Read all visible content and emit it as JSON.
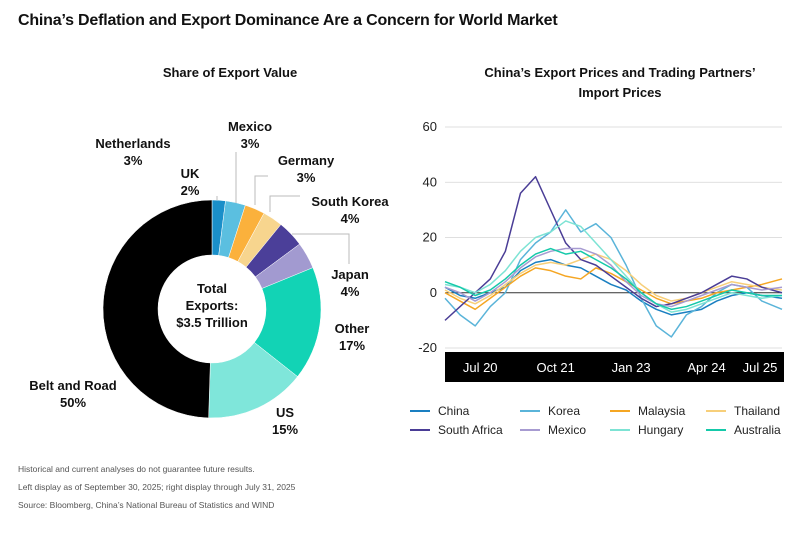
{
  "title": "China’s Deflation and Export Dominance Are a Concern for World Market",
  "footnotes": [
    "Historical and current analyses do not guarantee future results.",
    "Left display as of September 30, 2025; right display through July 31, 2025",
    "Source: Bloomberg, China’s National Bureau of Statistics and WIND"
  ],
  "chart_data": [
    {
      "type": "pie",
      "title": "Share of Export Value",
      "center_label": [
        "Total",
        "Exports:",
        "$3.5 Trillion"
      ],
      "slices": [
        {
          "label": "Netherlands",
          "value": 3,
          "value_label": "3%",
          "color": "#1a8fc9"
        },
        {
          "label": "Mexico",
          "value": 3,
          "value_label": "3%",
          "color": "#5bbfe0"
        },
        {
          "label": "Germany",
          "value": 3,
          "value_label": "3%",
          "color": "#fbb13c"
        },
        {
          "label": "South Korea",
          "value": 4,
          "value_label": "4%",
          "color": "#f7d58e"
        },
        {
          "label": "Japan",
          "value": 4,
          "value_label": "4%",
          "color": "#4b3f99"
        },
        {
          "label": "Other",
          "value": 17,
          "value_label": "17%",
          "color": "#a29ad0"
        },
        {
          "label": "US",
          "value": 15,
          "value_label": "15%",
          "color": "#12d3b5"
        },
        {
          "label": "Belt and Road",
          "value": 50,
          "value_label": "50%",
          "color": "#7fe6da"
        },
        {
          "label": "UK",
          "value": 2,
          "value_label": "2%",
          "color": "#000000"
        }
      ]
    },
    {
      "type": "line",
      "title": "China’s Export Prices and Trading Partners’ Import Prices",
      "xlabel": "",
      "ylabel": "",
      "ylim": [
        -20,
        60
      ],
      "yticks": [
        -20,
        0,
        20,
        40,
        60
      ],
      "xticks": [
        {
          "label": "Jul 20",
          "x": "2020-07"
        },
        {
          "label": "Oct 21",
          "x": "2021-10"
        },
        {
          "label": "Jan 23",
          "x": "2023-01"
        },
        {
          "label": "Apr 24",
          "x": "2024-04"
        },
        {
          "label": "Jul 25",
          "x": "2025-07"
        }
      ],
      "xlim": [
        "2019-12",
        "2025-07"
      ],
      "grid": true,
      "legend_position": "bottom",
      "series": [
        {
          "name": "China",
          "color": "#1a7fc1",
          "x": [
            "2019-12",
            "2020-03",
            "2020-06",
            "2020-09",
            "2020-12",
            "2021-03",
            "2021-06",
            "2021-09",
            "2021-12",
            "2022-03",
            "2022-06",
            "2022-09",
            "2022-12",
            "2023-03",
            "2023-06",
            "2023-09",
            "2023-12",
            "2024-03",
            "2024-06",
            "2024-09",
            "2024-12",
            "2025-03",
            "2025-07"
          ],
          "values": [
            2,
            -1,
            -2,
            0,
            2,
            8,
            11,
            12,
            10,
            9,
            6,
            3,
            1,
            -3,
            -6,
            -8,
            -7,
            -6,
            -3,
            -1,
            0,
            -1,
            -2
          ]
        },
        {
          "name": "Korea",
          "color": "#5ab4d9",
          "x": [
            "2019-12",
            "2020-03",
            "2020-06",
            "2020-09",
            "2020-12",
            "2021-03",
            "2021-06",
            "2021-09",
            "2021-12",
            "2022-03",
            "2022-06",
            "2022-09",
            "2022-12",
            "2023-03",
            "2023-06",
            "2023-09",
            "2023-12",
            "2024-03",
            "2024-06",
            "2024-09",
            "2024-12",
            "2025-03",
            "2025-07"
          ],
          "values": [
            -2,
            -8,
            -12,
            -5,
            0,
            12,
            18,
            22,
            30,
            22,
            25,
            20,
            10,
            -2,
            -12,
            -16,
            -8,
            -5,
            0,
            3,
            2,
            -3,
            -6
          ]
        },
        {
          "name": "Malaysia",
          "color": "#f5a623",
          "x": [
            "2019-12",
            "2020-03",
            "2020-06",
            "2020-09",
            "2020-12",
            "2021-03",
            "2021-06",
            "2021-09",
            "2021-12",
            "2022-03",
            "2022-06",
            "2022-09",
            "2022-12",
            "2023-03",
            "2023-06",
            "2023-09",
            "2023-12",
            "2024-03",
            "2024-06",
            "2024-09",
            "2024-12",
            "2025-03",
            "2025-07"
          ],
          "values": [
            0,
            -3,
            -6,
            -2,
            2,
            6,
            9,
            8,
            6,
            5,
            9,
            7,
            4,
            1,
            -2,
            -4,
            -3,
            -2,
            0,
            1,
            2,
            3,
            5
          ]
        },
        {
          "name": "Thailand",
          "color": "#f7cf7a",
          "x": [
            "2019-12",
            "2020-03",
            "2020-06",
            "2020-09",
            "2020-12",
            "2021-03",
            "2021-06",
            "2021-09",
            "2021-12",
            "2022-03",
            "2022-06",
            "2022-09",
            "2022-12",
            "2023-03",
            "2023-06",
            "2023-09",
            "2023-12",
            "2024-03",
            "2024-06",
            "2024-09",
            "2024-12",
            "2025-03",
            "2025-07"
          ],
          "values": [
            1,
            -2,
            -4,
            -1,
            3,
            7,
            10,
            11,
            10,
            12,
            14,
            12,
            8,
            3,
            -1,
            -3,
            -2,
            0,
            2,
            4,
            3,
            2,
            1
          ]
        },
        {
          "name": "South Africa",
          "color": "#4a3d96",
          "x": [
            "2019-12",
            "2020-03",
            "2020-06",
            "2020-09",
            "2020-12",
            "2021-03",
            "2021-06",
            "2021-09",
            "2021-12",
            "2022-03",
            "2022-06",
            "2022-09",
            "2022-12",
            "2023-03",
            "2023-06",
            "2023-09",
            "2023-12",
            "2024-03",
            "2024-06",
            "2024-09",
            "2024-12",
            "2025-03",
            "2025-07"
          ],
          "values": [
            -10,
            -5,
            0,
            5,
            15,
            36,
            42,
            30,
            18,
            12,
            10,
            6,
            2,
            -2,
            -5,
            -4,
            -2,
            0,
            3,
            6,
            5,
            2,
            0
          ]
        },
        {
          "name": "Mexico",
          "color": "#a79bd1",
          "x": [
            "2019-12",
            "2020-03",
            "2020-06",
            "2020-09",
            "2020-12",
            "2021-03",
            "2021-06",
            "2021-09",
            "2021-12",
            "2022-03",
            "2022-06",
            "2022-09",
            "2022-12",
            "2023-03",
            "2023-06",
            "2023-09",
            "2023-12",
            "2024-03",
            "2024-06",
            "2024-09",
            "2024-12",
            "2025-03",
            "2025-07"
          ],
          "values": [
            2,
            0,
            -3,
            0,
            4,
            9,
            13,
            15,
            16,
            16,
            14,
            10,
            4,
            -1,
            -4,
            -5,
            -3,
            -1,
            1,
            3,
            2,
            1,
            2
          ]
        },
        {
          "name": "Hungary",
          "color": "#7de3d4",
          "x": [
            "2019-12",
            "2020-03",
            "2020-06",
            "2020-09",
            "2020-12",
            "2021-03",
            "2021-06",
            "2021-09",
            "2021-12",
            "2022-03",
            "2022-06",
            "2022-09",
            "2022-12",
            "2023-03",
            "2023-06",
            "2023-09",
            "2023-12",
            "2024-03",
            "2024-06",
            "2024-09",
            "2024-12",
            "2025-03",
            "2025-07"
          ],
          "values": [
            3,
            2,
            0,
            3,
            8,
            15,
            20,
            22,
            26,
            24,
            18,
            12,
            6,
            0,
            -4,
            -7,
            -6,
            -4,
            -2,
            0,
            -1,
            -2,
            -1
          ]
        },
        {
          "name": "Australia",
          "color": "#15c9a9",
          "x": [
            "2019-12",
            "2020-03",
            "2020-06",
            "2020-09",
            "2020-12",
            "2021-03",
            "2021-06",
            "2021-09",
            "2021-12",
            "2022-03",
            "2022-06",
            "2022-09",
            "2022-12",
            "2023-03",
            "2023-06",
            "2023-09",
            "2023-12",
            "2024-03",
            "2024-06",
            "2024-09",
            "2024-12",
            "2025-03",
            "2025-07"
          ],
          "values": [
            4,
            2,
            -1,
            1,
            5,
            10,
            14,
            16,
            14,
            15,
            12,
            9,
            5,
            0,
            -4,
            -6,
            -5,
            -3,
            -1,
            1,
            0,
            -1,
            -1
          ]
        }
      ]
    }
  ]
}
